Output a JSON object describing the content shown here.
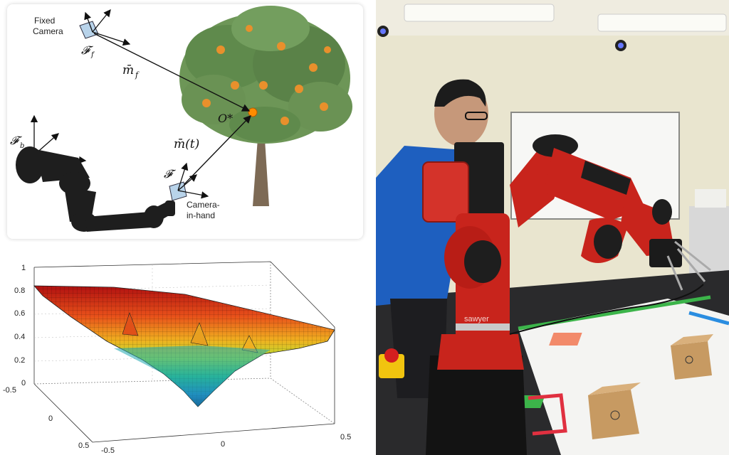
{
  "diagram": {
    "fixed_camera_line1": "Fixed",
    "fixed_camera_line2": "Camera",
    "frame_fixed": "𝓕",
    "frame_fixed_sub": "f",
    "vec_mf": "m̄",
    "vec_mf_sub": "f",
    "target": "O*",
    "vec_mt": "m̄(t)",
    "frame_base": "𝓕",
    "frame_base_sub": "b",
    "frame_hand": "𝓕",
    "cam_hand_line1": "Camera-",
    "cam_hand_line2": "in-hand"
  },
  "surface_plot": {
    "z_ticks": [
      "1",
      "0.8",
      "0.6",
      "0.4",
      "0.2",
      "0"
    ],
    "y_ticks": [
      "0.5",
      "0",
      "-0.5"
    ],
    "x_ticks": [
      "-0.5",
      "0",
      "0.5"
    ]
  },
  "photo": {
    "robot_brand": "sawyer"
  },
  "colors": {
    "robot_red": "#c8241c",
    "tree_green": "#5f8a4c",
    "fruit_orange": "#e8902c",
    "board_white": "#f4f4f2"
  }
}
